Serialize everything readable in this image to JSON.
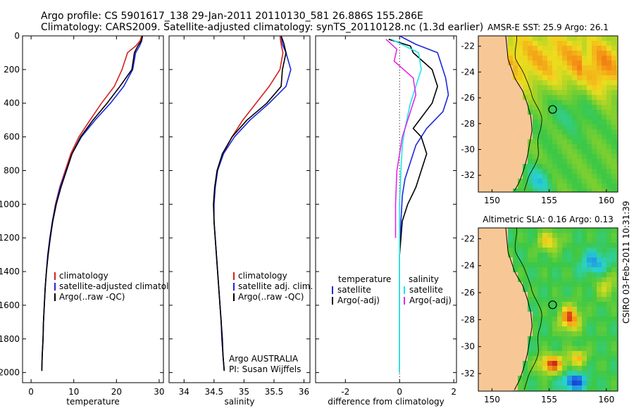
{
  "title_line1": "Argo profile: CS 5901617_138 29-Jan-2011 20110130_581 26.886S 155.286E",
  "title_line2": "Climatology: CARS2009. Satellite-adjusted climatology: synTS_20110128.nc (1.3d earlier)",
  "side_stamp": "CSIRO 03-Feb-2011 10:31:39",
  "colors": {
    "red": "#d42020",
    "blue": "#1c28dc",
    "black": "#000000",
    "cyan": "#1ee6e6",
    "magenta": "#e628e6",
    "land": "#f7c896"
  },
  "chart_data": [
    {
      "type": "line",
      "name": "temperature",
      "xlabel": "temperature",
      "xlim": [
        -2,
        31
      ],
      "ylim": [
        0,
        2060
      ],
      "y_inverted": true,
      "xticks": [
        0,
        10,
        20,
        30
      ],
      "yticks": [
        0,
        200,
        400,
        600,
        800,
        1000,
        1200,
        1400,
        1600,
        1800,
        2000
      ],
      "legend": [
        "climatology",
        "satellite-adjusted climatology",
        "Argo(..raw -QC)"
      ],
      "series": [
        {
          "name": "climatology",
          "color": "red",
          "points": [
            [
              25.9,
              0
            ],
            [
              25.5,
              30
            ],
            [
              24.5,
              60
            ],
            [
              22.6,
              100
            ],
            [
              21.3,
              200
            ],
            [
              19.5,
              300
            ],
            [
              16.5,
              400
            ],
            [
              13.8,
              500
            ],
            [
              11.2,
              600
            ],
            [
              9.3,
              700
            ],
            [
              8.0,
              800
            ],
            [
              6.7,
              900
            ],
            [
              5.7,
              1000
            ],
            [
              5.0,
              1100
            ],
            [
              4.4,
              1200
            ],
            [
              3.9,
              1300
            ],
            [
              3.6,
              1400
            ],
            [
              3.3,
              1500
            ],
            [
              3.1,
              1600
            ],
            [
              2.9,
              1700
            ],
            [
              2.8,
              1800
            ],
            [
              2.6,
              1900
            ],
            [
              2.5,
              1990
            ]
          ]
        },
        {
          "name": "satellite-adjusted climatology",
          "color": "blue",
          "points": [
            [
              26.1,
              0
            ],
            [
              25.9,
              30
            ],
            [
              25.4,
              60
            ],
            [
              24.5,
              100
            ],
            [
              23.8,
              200
            ],
            [
              21.7,
              300
            ],
            [
              18.6,
              400
            ],
            [
              15.0,
              500
            ],
            [
              11.8,
              600
            ],
            [
              9.6,
              700
            ],
            [
              8.2,
              800
            ],
            [
              6.8,
              900
            ],
            [
              5.8,
              1000
            ],
            [
              5.0,
              1100
            ],
            [
              4.4,
              1200
            ],
            [
              3.9,
              1300
            ],
            [
              3.6,
              1400
            ],
            [
              3.3,
              1500
            ],
            [
              3.1,
              1600
            ],
            [
              2.9,
              1700
            ],
            [
              2.8,
              1800
            ],
            [
              2.6,
              1900
            ],
            [
              2.5,
              1990
            ]
          ]
        },
        {
          "name": "Argo(..raw -QC)",
          "color": "black",
          "points": [
            [
              26.1,
              0
            ],
            [
              25.8,
              30
            ],
            [
              25.0,
              60
            ],
            [
              24.2,
              100
            ],
            [
              23.6,
              200
            ],
            [
              20.8,
              300
            ],
            [
              17.8,
              400
            ],
            [
              14.5,
              500
            ],
            [
              11.6,
              600
            ],
            [
              9.6,
              700
            ],
            [
              8.3,
              800
            ],
            [
              7.0,
              900
            ],
            [
              5.9,
              1000
            ],
            [
              5.1,
              1100
            ],
            [
              4.5,
              1200
            ],
            [
              4.0,
              1300
            ],
            [
              3.6,
              1400
            ],
            [
              3.3,
              1500
            ],
            [
              3.1,
              1600
            ],
            [
              2.9,
              1700
            ],
            [
              2.8,
              1800
            ],
            [
              2.6,
              1900
            ],
            [
              2.5,
              1990
            ]
          ]
        }
      ]
    },
    {
      "type": "line",
      "name": "salinity",
      "xlabel": "salinity",
      "xlim": [
        33.75,
        36.1
      ],
      "ylim": [
        0,
        2060
      ],
      "y_inverted": true,
      "xticks": [
        34,
        34.5,
        35,
        35.5,
        36
      ],
      "legend": [
        "climatology",
        "satellite adj. clim.",
        "Argo(..raw -QC)"
      ],
      "annotation": [
        "Argo AUSTRALIA",
        "PI: Susan Wijffels"
      ],
      "series": [
        {
          "name": "climatology",
          "color": "red",
          "points": [
            [
              35.6,
              0
            ],
            [
              35.62,
              50
            ],
            [
              35.65,
              100
            ],
            [
              35.6,
              200
            ],
            [
              35.42,
              300
            ],
            [
              35.2,
              400
            ],
            [
              34.98,
              500
            ],
            [
              34.8,
              600
            ],
            [
              34.65,
              700
            ],
            [
              34.56,
              800
            ],
            [
              34.52,
              900
            ],
            [
              34.5,
              1000
            ],
            [
              34.5,
              1100
            ],
            [
              34.52,
              1200
            ],
            [
              34.54,
              1300
            ],
            [
              34.56,
              1400
            ],
            [
              34.58,
              1500
            ],
            [
              34.6,
              1600
            ],
            [
              34.62,
              1700
            ],
            [
              34.63,
              1800
            ],
            [
              34.65,
              1900
            ],
            [
              34.67,
              1990
            ]
          ]
        },
        {
          "name": "satellite adj. clim.",
          "color": "blue",
          "points": [
            [
              35.62,
              0
            ],
            [
              35.64,
              50
            ],
            [
              35.7,
              100
            ],
            [
              35.78,
              200
            ],
            [
              35.7,
              300
            ],
            [
              35.42,
              400
            ],
            [
              35.1,
              500
            ],
            [
              34.84,
              600
            ],
            [
              34.66,
              700
            ],
            [
              34.56,
              800
            ],
            [
              34.52,
              900
            ],
            [
              34.5,
              1000
            ],
            [
              34.5,
              1100
            ],
            [
              34.52,
              1200
            ],
            [
              34.54,
              1300
            ],
            [
              34.56,
              1400
            ],
            [
              34.58,
              1500
            ],
            [
              34.6,
              1600
            ],
            [
              34.62,
              1700
            ],
            [
              34.63,
              1800
            ],
            [
              34.65,
              1900
            ],
            [
              34.67,
              1990
            ]
          ]
        },
        {
          "name": "Argo(..raw -QC)",
          "color": "black",
          "points": [
            [
              35.62,
              0
            ],
            [
              35.66,
              40
            ],
            [
              35.7,
              100
            ],
            [
              35.64,
              200
            ],
            [
              35.62,
              300
            ],
            [
              35.38,
              400
            ],
            [
              35.05,
              500
            ],
            [
              34.8,
              600
            ],
            [
              34.64,
              700
            ],
            [
              34.55,
              800
            ],
            [
              34.51,
              900
            ],
            [
              34.49,
              1000
            ],
            [
              34.5,
              1100
            ],
            [
              34.52,
              1200
            ],
            [
              34.54,
              1300
            ],
            [
              34.56,
              1400
            ],
            [
              34.58,
              1500
            ],
            [
              34.6,
              1600
            ],
            [
              34.62,
              1700
            ],
            [
              34.64,
              1800
            ],
            [
              34.65,
              1900
            ],
            [
              34.67,
              1990
            ]
          ]
        }
      ]
    },
    {
      "type": "line",
      "name": "difference",
      "xlabel": "difference from climatology",
      "xlim": [
        -3.1,
        2.1
      ],
      "ylim": [
        0,
        2060
      ],
      "y_inverted": true,
      "xticks": [
        -2,
        0,
        2
      ],
      "legend_titles": [
        "temperature",
        "salinity"
      ],
      "legend": [
        "satellite",
        "Argo(-adj)",
        "satellite",
        "Argo(-adj)"
      ],
      "series": [
        {
          "name": "temperature satellite",
          "color": "blue",
          "points": [
            [
              0.0,
              0
            ],
            [
              0.6,
              50
            ],
            [
              1.4,
              100
            ],
            [
              1.7,
              250
            ],
            [
              1.8,
              350
            ],
            [
              1.6,
              450
            ],
            [
              1.0,
              550
            ],
            [
              0.6,
              650
            ],
            [
              0.4,
              750
            ],
            [
              0.2,
              850
            ],
            [
              0.1,
              950
            ],
            [
              0.05,
              1100
            ],
            [
              0.0,
              1300
            ],
            [
              0.0,
              2000
            ]
          ]
        },
        {
          "name": "temperature Argo(-adj)",
          "color": "black",
          "points": [
            [
              -0.4,
              20
            ],
            [
              0.4,
              60
            ],
            [
              0.5,
              100
            ],
            [
              1.2,
              200
            ],
            [
              1.4,
              300
            ],
            [
              1.2,
              400
            ],
            [
              0.5,
              550
            ],
            [
              0.8,
              600
            ],
            [
              1.0,
              700
            ],
            [
              0.8,
              800
            ],
            [
              0.6,
              900
            ],
            [
              0.3,
              1000
            ],
            [
              0.1,
              1100
            ],
            [
              0.0,
              1300
            ],
            [
              0.0,
              2000
            ]
          ]
        },
        {
          "name": "salinity satellite",
          "color": "cyan",
          "points": [
            [
              -0.3,
              20
            ],
            [
              0.2,
              60
            ],
            [
              0.7,
              100
            ],
            [
              0.8,
              200
            ],
            [
              0.6,
              300
            ],
            [
              0.4,
              400
            ],
            [
              0.2,
              550
            ],
            [
              0.1,
              650
            ],
            [
              0.05,
              800
            ],
            [
              0.0,
              1000
            ],
            [
              0.0,
              2000
            ]
          ]
        },
        {
          "name": "salinity Argo(-adj)",
          "color": "magenta",
          "points": [
            [
              -0.5,
              20
            ],
            [
              -0.1,
              80
            ],
            [
              -0.2,
              150
            ],
            [
              0.5,
              250
            ],
            [
              0.6,
              350
            ],
            [
              0.4,
              450
            ],
            [
              0.1,
              600
            ],
            [
              -0.1,
              800
            ],
            [
              -0.15,
              1000
            ],
            [
              -0.15,
              1200
            ]
          ]
        }
      ]
    },
    {
      "type": "heatmap",
      "name": "sst-map",
      "title": "AMSR-E SST: 25.9 Argo: 26.1",
      "xlim": [
        148.8,
        161
      ],
      "ylim": [
        -33.3,
        -21.2
      ],
      "xticks": [
        150,
        155,
        160
      ],
      "yticks": [
        -22,
        -24,
        -26,
        -28,
        -30,
        -32
      ],
      "marker": [
        155.3,
        -26.9
      ]
    },
    {
      "type": "heatmap",
      "name": "sla-map",
      "title": "Altimetric SLA: 0.16 Argo: 0.13",
      "xlim": [
        148.8,
        161
      ],
      "ylim": [
        -33.3,
        -21.2
      ],
      "xticks": [
        150,
        155,
        160
      ],
      "yticks": [
        -22,
        -24,
        -26,
        -28,
        -30,
        -32
      ],
      "marker": [
        155.3,
        -26.9
      ]
    }
  ]
}
